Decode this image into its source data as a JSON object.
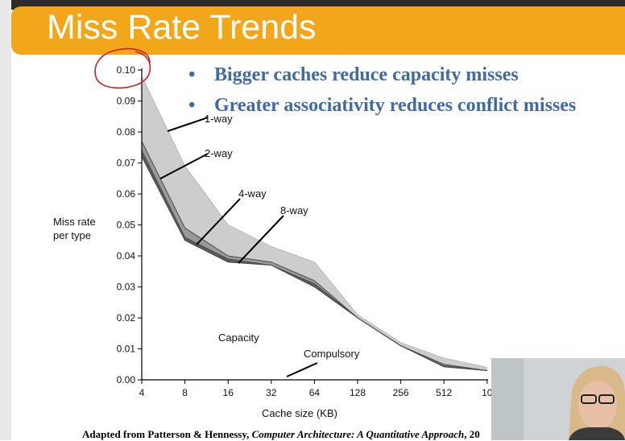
{
  "slide": {
    "title": "Miss Rate Trends",
    "bullets": [
      "Bigger caches reduce  capacity misses",
      "Greater associativity reduces conflict misses"
    ],
    "footer_prefix": "Adapted from Patterson & Hennessy, ",
    "footer_book": "Computer Architecture: A Quantitative Approach",
    "footer_suffix": ", 20",
    "banner_color": "#f2a71b",
    "title_color": "#ffffff",
    "bullet_color": "#3f6aa6",
    "annotation_color": "#d42020"
  },
  "chart_data": {
    "type": "area",
    "ylabel": "Miss rate\nper type",
    "xlabel": "Cache size (KB)",
    "categories": [
      "4",
      "8",
      "16",
      "32",
      "64",
      "128",
      "256",
      "512",
      "10"
    ],
    "y_ticks": [
      "0.00",
      "0.01",
      "0.02",
      "0.03",
      "0.04",
      "0.05",
      "0.06",
      "0.07",
      "0.08",
      "0.09",
      "0.10"
    ],
    "ylim": [
      0,
      0.1
    ],
    "series": [
      {
        "name": "1-way",
        "values": [
          0.098,
          0.069,
          0.05,
          0.043,
          0.038,
          0.021,
          0.012,
          0.007,
          0.004
        ]
      },
      {
        "name": "2-way",
        "values": [
          0.077,
          0.049,
          0.04,
          0.038,
          0.032,
          0.02,
          0.011,
          0.005,
          0.003
        ]
      },
      {
        "name": "4-way",
        "values": [
          0.074,
          0.046,
          0.039,
          0.037,
          0.031,
          0.02,
          0.011,
          0.0045,
          0.003
        ]
      },
      {
        "name": "8-way",
        "values": [
          0.072,
          0.045,
          0.038,
          0.037,
          0.03,
          0.02,
          0.011,
          0.0042,
          0.003
        ]
      }
    ],
    "annotations": [
      "Capacity",
      "Compulsory"
    ],
    "colors": {
      "one_way_band": "#cdcdcd",
      "two_way_band": "#9a9a9a",
      "low_band": "#5a5a5a",
      "leader": "#000000"
    }
  }
}
